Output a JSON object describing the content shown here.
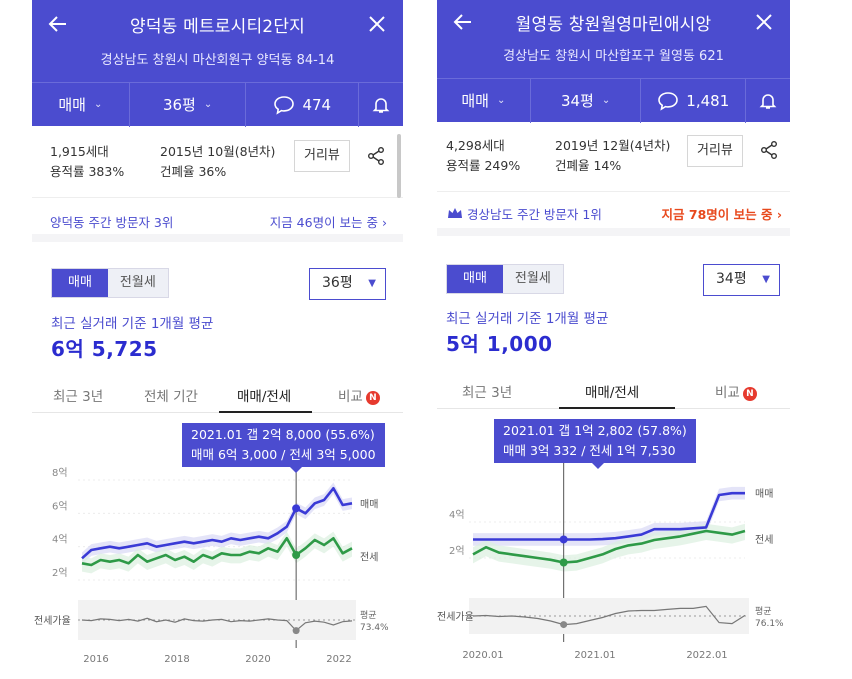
{
  "colors": {
    "accent": "#4b4ccf",
    "sale_line": "#3a3ad6",
    "jeonse_line": "#2e9a47",
    "hot": "#e8491d",
    "badge": "#e63a2e"
  },
  "left": {
    "title": "양덕동 메트로시티2단지",
    "address": "경상남도 창원시 마산회원구 양덕동 84-14",
    "trade_type": "매매",
    "size": "36평",
    "comments": "474",
    "households": "1,915세대",
    "floor_area_ratio": "용적률 383%",
    "built": "2015년 10월(8년차)",
    "coverage_ratio": "건폐율 36%",
    "distance_button": "거리뷰",
    "visit_rank": "양덕동 주간 방문자 3위",
    "viewers": "지금 46명이 보는 중",
    "seg_sale": "매매",
    "seg_rent": "전월세",
    "size_select": "36평",
    "avg_label": "최근 실거래 기준 1개월 평균",
    "avg_value": "6억 5,725",
    "tabs": {
      "recent3": "최근 3년",
      "all": "전체 기간",
      "sale_jeonse": "매매/전세",
      "compare": "비교"
    },
    "badge": "N",
    "tooltip_line1": "2021.01  갭 2억 8,000 (55.6%)",
    "tooltip_line2": "매매 6억 3,000 / 전세 3억 5,000",
    "chart_data": {
      "type": "line",
      "x_labels": [
        "2016",
        "2018",
        "2020",
        "2022"
      ],
      "y_labels": [
        "8억",
        "6억",
        "4억",
        "2억"
      ],
      "ylim": [
        2,
        8
      ],
      "series": [
        {
          "name": "매매",
          "values": [
            3.3,
            3.8,
            3.9,
            4.0,
            3.9,
            4.0,
            4.1,
            4.2,
            4.0,
            4.1,
            4.2,
            4.3,
            4.2,
            4.3,
            4.4,
            4.3,
            4.5,
            4.4,
            4.5,
            4.6,
            4.5,
            4.8,
            5.2,
            6.3,
            6.0,
            6.6,
            6.8,
            7.5,
            6.5,
            6.6
          ]
        },
        {
          "name": "전세",
          "values": [
            3.0,
            2.9,
            3.2,
            3.1,
            3.2,
            3.0,
            3.5,
            3.1,
            3.3,
            3.5,
            3.2,
            3.4,
            3.1,
            3.5,
            3.3,
            3.6,
            3.5,
            3.5,
            3.7,
            3.6,
            3.9,
            3.7,
            4.5,
            3.5,
            3.9,
            4.4,
            4.1,
            4.5,
            3.6,
            3.9
          ]
        }
      ],
      "ratio_label": "전세가율",
      "ratio_series": [
        0.75,
        0.74,
        0.77,
        0.76,
        0.74,
        0.76,
        0.73,
        0.78,
        0.72,
        0.75,
        0.71,
        0.77,
        0.74,
        0.73,
        0.75,
        0.76,
        0.72,
        0.74,
        0.73,
        0.75,
        0.77,
        0.75,
        0.74,
        0.56,
        0.7,
        0.73,
        0.71,
        0.66,
        0.72,
        0.734
      ],
      "ratio_avg_label": "평균",
      "ratio_value": "73.4%",
      "series_labels": [
        "매매",
        "전세"
      ],
      "highlight_index": 23
    }
  },
  "right": {
    "title": "월영동 창원월영마린애시앙",
    "address": "경상남도 창원시 마산합포구 월영동 621",
    "trade_type": "매매",
    "size": "34평",
    "comments": "1,481",
    "households": "4,298세대",
    "floor_area_ratio": "용적률 249%",
    "built": "2019년 12월(4년차)",
    "coverage_ratio": "건폐율 14%",
    "distance_button": "거리뷰",
    "visit_rank": "경상남도 주간 방문자 1위",
    "viewers": "지금 78명이 보는 중",
    "seg_sale": "매매",
    "seg_rent": "전월세",
    "size_select": "34평",
    "avg_label": "최근 실거래 기준 1개월 평균",
    "avg_value": "5억 1,000",
    "tabs": {
      "recent3": "최근 3년",
      "sale_jeonse": "매매/전세",
      "compare": "비교"
    },
    "badge": "N",
    "tooltip_line1": "2021.01  갭 1억 2,802 (57.8%)",
    "tooltip_line2": "매매 3억 332 / 전세 1억 7,530",
    "chart_data": {
      "type": "line",
      "x_labels": [
        "2020.01",
        "2021.01",
        "2022.01"
      ],
      "y_labels": [
        "4억",
        "2억"
      ],
      "ylim": [
        1,
        6
      ],
      "series": [
        {
          "name": "매매",
          "values": [
            3.03,
            3.03,
            3.03,
            3.03,
            3.03,
            3.03,
            3.03,
            3.03,
            3.03,
            3.03,
            3.05,
            3.1,
            3.2,
            3.3,
            3.6,
            3.6,
            3.6,
            3.65,
            3.7,
            5.5,
            5.6,
            5.6
          ]
        },
        {
          "name": "전세",
          "values": [
            2.2,
            2.6,
            2.3,
            2.2,
            2.1,
            2.0,
            1.9,
            1.75,
            1.8,
            2.0,
            2.2,
            2.5,
            2.7,
            2.8,
            3.0,
            3.1,
            3.2,
            3.35,
            3.5,
            3.4,
            3.3,
            3.5
          ]
        }
      ],
      "ratio_label": "전세가율",
      "ratio_series": [
        0.75,
        0.76,
        0.74,
        0.75,
        0.73,
        0.7,
        0.65,
        0.58,
        0.6,
        0.66,
        0.72,
        0.8,
        0.85,
        0.86,
        0.86,
        0.88,
        0.9,
        0.9,
        0.94,
        0.62,
        0.6,
        0.761
      ],
      "ratio_avg_label": "평균",
      "ratio_value": "76.1%",
      "series_labels": [
        "매매",
        "전세"
      ],
      "highlight_index": 7
    }
  }
}
